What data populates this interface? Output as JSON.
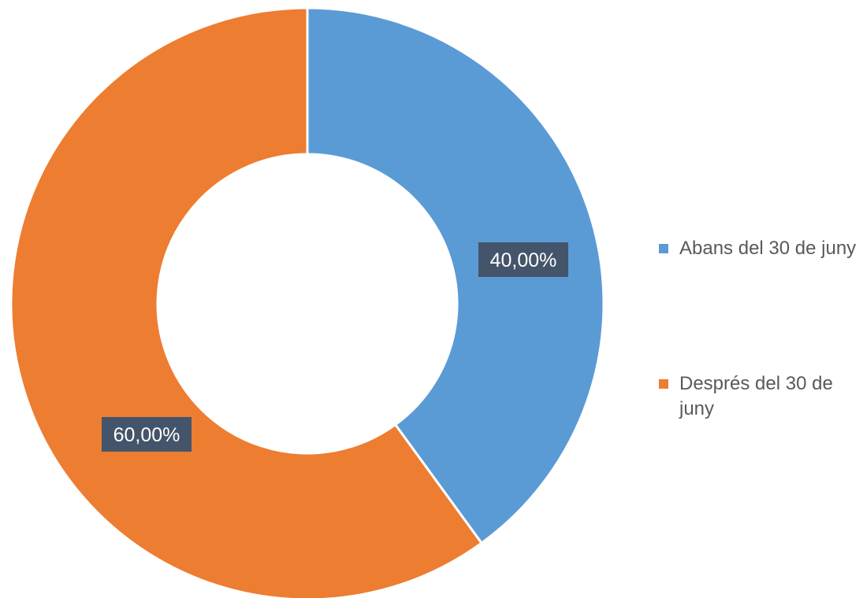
{
  "chart_data": {
    "type": "pie",
    "title": "",
    "categories": [
      "Abans del 30 de juny",
      "Després del 30 de juny"
    ],
    "values": [
      40,
      60
    ],
    "data_labels": [
      "40,00%",
      "60,00%"
    ],
    "colors": [
      "#5B9BD5",
      "#ED7D31"
    ],
    "donut": true,
    "label_background": "#44546A",
    "legend_position": "right"
  }
}
